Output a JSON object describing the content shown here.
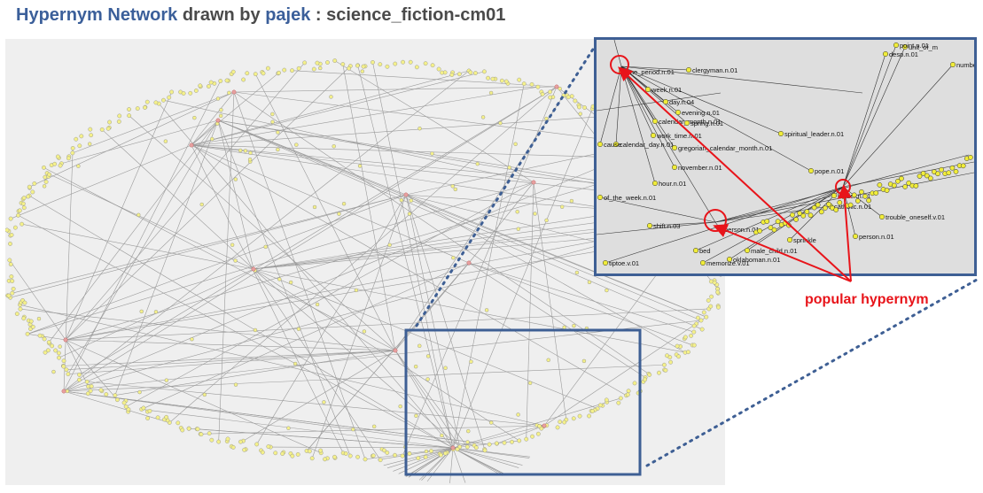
{
  "title": {
    "part1": "Hypernym Network",
    "part2": " drawn by ",
    "part3": "pajek",
    "part4": " : science_fiction-cm01"
  },
  "annotation": "popular hypernym",
  "zoom_labels": [
    "time_period.n.01",
    "clergyman.n.01",
    "week.n.01",
    "day.n.04",
    "evening.n.01",
    "calendar_month.n.01",
    "spring.n.01",
    "work_time.n.01",
    "calendar_day.n.01",
    "cause",
    "spiritual_leader.n.01",
    "gregorian_calendar_month.n.01",
    "november.n.01",
    "pope.n.01",
    "hour.n.01",
    "leader.n.01",
    "catholic.n.01",
    "of_the_week.n.01",
    "person.n.01",
    "shift.n.03",
    "unit_of_m",
    "number",
    "desp.n.01",
    "point.n.01",
    "trouble_oneself.v.01",
    "male_child.n.01",
    "sprinkle",
    "oklahoman.n.01",
    "memorize.v.01",
    "tiptoe.v.01",
    "bed",
    "person.n.01"
  ],
  "colors": {
    "title_highlight": "#3b5f9a",
    "annotation": "#e8141a",
    "node_fill": "#f4f08a",
    "hub_node": "#e7a0a0",
    "frame": "#3e5f94"
  }
}
